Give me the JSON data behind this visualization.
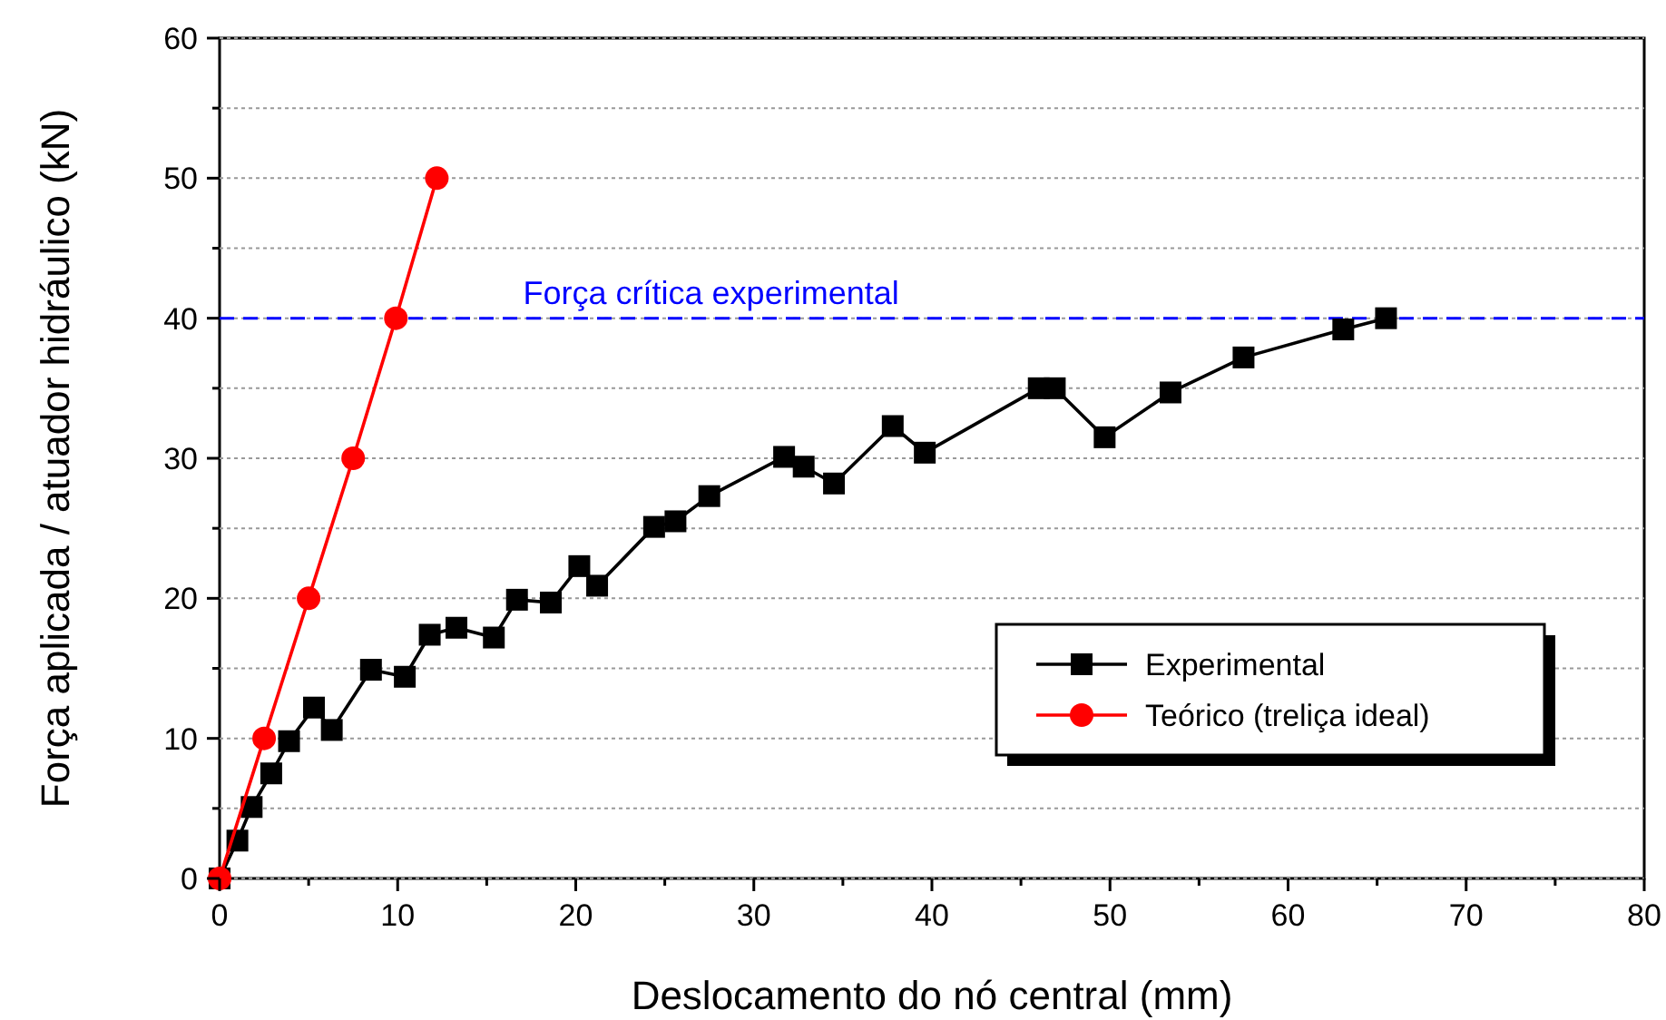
{
  "chart_data": {
    "type": "line",
    "xlabel": "Deslocamento do nó central (mm)",
    "ylabel": "Força aplicada / atuador hidráulico (kN)",
    "xlim": [
      0,
      80
    ],
    "ylim": [
      0,
      60
    ],
    "xticks": [
      0,
      {
        "value": 5,
        "label": null
      },
      10,
      {
        "value": 15,
        "label": null
      },
      20,
      {
        "value": 25,
        "label": null
      },
      30,
      {
        "value": 35,
        "label": null
      },
      40,
      {
        "value": 45,
        "label": null
      },
      50,
      {
        "value": 55,
        "label": null
      },
      60,
      {
        "value": 65,
        "label": null
      },
      70,
      {
        "value": 75,
        "label": null
      },
      80
    ],
    "yticks": [
      0,
      {
        "value": 5,
        "label": null
      },
      10,
      {
        "value": 15,
        "label": null
      },
      20,
      {
        "value": 25,
        "label": null
      },
      30,
      {
        "value": 35,
        "label": null
      },
      40,
      {
        "value": 45,
        "label": null
      },
      50,
      {
        "value": 55,
        "label": null
      },
      60
    ],
    "grid": "y",
    "legend": "bottom right",
    "series": [
      {
        "name": "Experimental",
        "color": "#000000",
        "marker": "square",
        "x": [
          0,
          1.0,
          1.8,
          2.9,
          3.9,
          5.3,
          6.3,
          8.5,
          10.4,
          11.8,
          13.3,
          15.4,
          16.7,
          18.6,
          20.2,
          21.2,
          24.4,
          25.6,
          27.5,
          31.7,
          32.8,
          34.5,
          37.8,
          39.6,
          46.0,
          46.9,
          49.7,
          53.4,
          57.5,
          63.1,
          65.5
        ],
        "values": [
          0,
          2.7,
          5.1,
          7.5,
          9.8,
          12.2,
          10.6,
          14.9,
          14.4,
          17.4,
          17.9,
          17.2,
          19.9,
          19.7,
          22.3,
          20.9,
          25.1,
          25.5,
          27.3,
          30.1,
          29.4,
          28.2,
          32.3,
          30.4,
          35.0,
          35.0,
          31.5,
          34.7,
          37.2,
          39.2,
          40.0
        ]
      },
      {
        "name": "Teórico (treliça ideal)",
        "color": "#ff0000",
        "marker": "circle",
        "x": [
          0,
          2.5,
          5,
          7.5,
          9.9,
          12.2
        ],
        "values": [
          0,
          10,
          20,
          30,
          40,
          50
        ]
      }
    ],
    "ref_lines": [
      {
        "axis": "y",
        "value": 40,
        "label": "Força crítica experimental",
        "color": "#0000ff",
        "line_style": "dashed"
      }
    ]
  }
}
